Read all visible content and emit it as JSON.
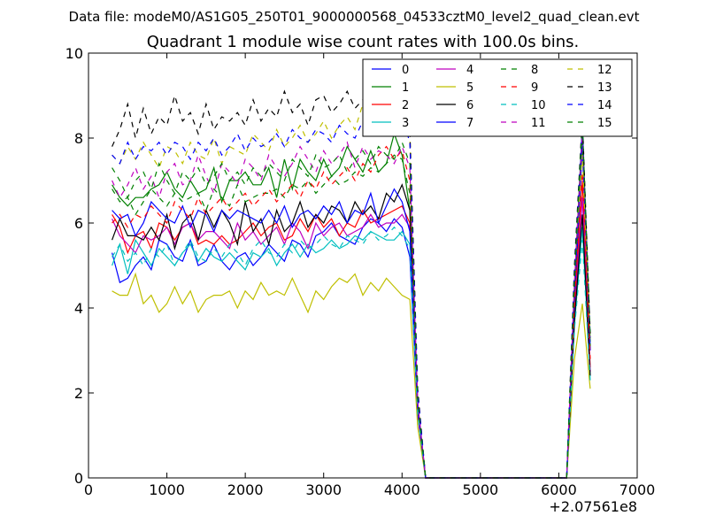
{
  "suptitle": "Data file: modeM0/AS1G05_250T01_9000000568_04533cztM0_level2_quad_clean.evt",
  "chart_data": {
    "type": "line",
    "title": "Quadrant 1 module wise count rates with 100.0s bins.",
    "xlabel": "",
    "ylabel": "",
    "xlim": [
      0,
      7000
    ],
    "ylim": [
      0,
      10
    ],
    "x_offset_label": "+2.07561e8",
    "x_ticks": [
      "0",
      "1000",
      "2000",
      "3000",
      "4000",
      "5000",
      "6000",
      "7000"
    ],
    "y_ticks": [
      "0",
      "2",
      "4",
      "6",
      "8",
      "10"
    ],
    "grid": false,
    "legend_position": "top-right",
    "series": [
      {
        "name": "0",
        "color": "#0000ff",
        "dash": "solid",
        "x0": 300,
        "dx": 100,
        "values": [
          5.3,
          4.6,
          4.7,
          5.0,
          5.2,
          4.9,
          5.6,
          5.5,
          5.2,
          5.1,
          5.6,
          5.0,
          5.1,
          5.5,
          5.1,
          4.9,
          5.2,
          5.3,
          5.0,
          5.2,
          5.5,
          5.3,
          5.1,
          5.6,
          5.5,
          5.2,
          5.7,
          5.8,
          6.0,
          5.7,
          5.6,
          5.5,
          5.9,
          6.1,
          6.0,
          5.8,
          6.1,
          5.9,
          5.2,
          1.5,
          0.0,
          0.0,
          0.0,
          0.0,
          0.0,
          0.0,
          0.0,
          0.0,
          0.0,
          0.0,
          0.0,
          0.0,
          0.0,
          0.0,
          0.0,
          0.0,
          0.0,
          0.0,
          0.0,
          4.0,
          7.8,
          3.0
        ]
      },
      {
        "name": "1",
        "color": "#008000",
        "dash": "solid",
        "x0": 300,
        "dx": 100,
        "values": [
          6.9,
          6.6,
          6.4,
          6.6,
          6.6,
          6.8,
          6.9,
          7.2,
          6.8,
          6.6,
          7.0,
          6.7,
          6.8,
          7.3,
          6.5,
          7.0,
          7.0,
          7.2,
          6.9,
          6.9,
          7.3,
          6.6,
          7.5,
          6.8,
          7.5,
          7.2,
          7.0,
          7.5,
          7.1,
          7.3,
          7.8,
          7.5,
          7.2,
          7.7,
          7.2,
          7.4,
          8.1,
          7.6,
          6.3,
          1.6,
          0.0,
          0.0,
          0.0,
          0.0,
          0.0,
          0.0,
          0.0,
          0.0,
          0.0,
          0.0,
          0.0,
          0.0,
          0.0,
          0.0,
          0.0,
          0.0,
          0.0,
          0.0,
          0.0,
          4.5,
          8.3,
          3.2
        ]
      },
      {
        "name": "2",
        "color": "#ff0000",
        "dash": "solid",
        "x0": 300,
        "dx": 100,
        "values": [
          6.2,
          5.9,
          5.3,
          5.7,
          5.8,
          5.4,
          6.0,
          5.9,
          5.6,
          5.9,
          6.0,
          5.5,
          5.6,
          5.5,
          5.7,
          5.5,
          5.6,
          5.8,
          6.0,
          5.7,
          5.9,
          6.0,
          5.6,
          5.7,
          6.1,
          5.8,
          6.2,
          5.9,
          6.1,
          5.7,
          6.0,
          5.9,
          6.3,
          6.0,
          6.1,
          6.2,
          6.3,
          6.4,
          6.0,
          1.6,
          0.0,
          0.0,
          0.0,
          0.0,
          0.0,
          0.0,
          0.0,
          0.0,
          0.0,
          0.0,
          0.0,
          0.0,
          0.0,
          0.0,
          0.0,
          0.0,
          0.0,
          0.0,
          0.0,
          3.9,
          7.0,
          2.6
        ]
      },
      {
        "name": "3",
        "color": "#00bfbf",
        "dash": "solid",
        "x0": 300,
        "dx": 100,
        "values": [
          5.0,
          5.5,
          4.8,
          5.6,
          5.3,
          5.0,
          5.4,
          5.2,
          5.0,
          5.3,
          5.5,
          5.1,
          5.4,
          5.2,
          5.1,
          5.3,
          5.1,
          4.9,
          5.3,
          5.2,
          5.4,
          5.0,
          5.3,
          5.5,
          5.2,
          5.5,
          5.3,
          5.4,
          5.6,
          5.4,
          5.5,
          5.7,
          5.6,
          5.8,
          5.7,
          5.6,
          5.6,
          5.8,
          5.5,
          1.5,
          0.0,
          0.0,
          0.0,
          0.0,
          0.0,
          0.0,
          0.0,
          0.0,
          0.0,
          0.0,
          0.0,
          0.0,
          0.0,
          0.0,
          0.0,
          0.0,
          0.0,
          0.0,
          0.0,
          3.6,
          5.9,
          2.4
        ]
      },
      {
        "name": "4",
        "color": "#bf00bf",
        "dash": "solid",
        "x0": 300,
        "dx": 100,
        "values": [
          6.1,
          5.7,
          5.5,
          5.3,
          5.7,
          5.6,
          5.7,
          5.9,
          5.5,
          5.9,
          6.0,
          5.6,
          5.8,
          5.8,
          5.6,
          5.4,
          6.0,
          5.6,
          5.8,
          5.5,
          5.7,
          5.9,
          5.5,
          6.0,
          5.8,
          5.4,
          6.0,
          5.7,
          5.9,
          6.0,
          5.7,
          5.8,
          5.9,
          6.2,
          5.9,
          6.0,
          6.0,
          6.2,
          5.9,
          1.5,
          0.0,
          0.0,
          0.0,
          0.0,
          0.0,
          0.0,
          0.0,
          0.0,
          0.0,
          0.0,
          0.0,
          0.0,
          0.0,
          0.0,
          0.0,
          0.0,
          0.0,
          0.0,
          0.0,
          3.8,
          6.6,
          2.5
        ]
      },
      {
        "name": "5",
        "color": "#bfbf00",
        "dash": "solid",
        "x0": 300,
        "dx": 100,
        "values": [
          4.4,
          4.3,
          4.3,
          4.8,
          4.1,
          4.3,
          3.9,
          4.1,
          4.5,
          4.1,
          4.4,
          3.9,
          4.2,
          4.3,
          4.3,
          4.4,
          4.0,
          4.4,
          4.2,
          4.6,
          4.3,
          4.4,
          4.3,
          4.7,
          4.3,
          3.9,
          4.4,
          4.2,
          4.5,
          4.7,
          4.6,
          4.8,
          4.3,
          4.6,
          4.4,
          4.7,
          4.5,
          4.3,
          4.2,
          1.2,
          0.0,
          0.0,
          0.0,
          0.0,
          0.0,
          0.0,
          0.0,
          0.0,
          0.0,
          0.0,
          0.0,
          0.0,
          0.0,
          0.0,
          0.0,
          0.0,
          0.0,
          0.0,
          0.0,
          2.8,
          4.1,
          2.1
        ]
      },
      {
        "name": "6",
        "color": "#000000",
        "dash": "solid",
        "x0": 300,
        "dx": 100,
        "values": [
          5.6,
          6.1,
          5.7,
          5.7,
          5.6,
          5.9,
          5.6,
          6.2,
          5.4,
          6.0,
          6.2,
          5.6,
          6.3,
          5.9,
          6.3,
          6.0,
          5.5,
          6.5,
          5.8,
          6.1,
          5.5,
          6.3,
          5.8,
          6.0,
          6.5,
          5.9,
          6.2,
          6.0,
          6.4,
          6.3,
          6.0,
          6.5,
          6.2,
          6.4,
          6.1,
          6.7,
          6.5,
          6.9,
          6.3,
          1.7,
          0.0,
          0.0,
          0.0,
          0.0,
          0.0,
          0.0,
          0.0,
          0.0,
          0.0,
          0.0,
          0.0,
          0.0,
          0.0,
          0.0,
          0.0,
          0.0,
          0.0,
          0.0,
          0.0,
          3.7,
          6.2,
          2.4
        ]
      },
      {
        "name": "7",
        "color": "#0000ff",
        "dash": "solid",
        "x0": 300,
        "dx": 100,
        "values": [
          6.3,
          6.1,
          6.2,
          5.7,
          6.0,
          6.5,
          6.3,
          6.1,
          6.0,
          6.4,
          5.9,
          6.3,
          6.2,
          5.8,
          6.3,
          6.1,
          6.3,
          6.2,
          6.1,
          6.0,
          6.3,
          6.0,
          6.4,
          5.9,
          6.2,
          6.3,
          6.1,
          6.4,
          6.2,
          6.5,
          6.0,
          6.3,
          6.2,
          6.7,
          6.0,
          6.4,
          6.8,
          6.5,
          5.8,
          1.6,
          0.0,
          0.0,
          0.0,
          0.0,
          0.0,
          0.0,
          0.0,
          0.0,
          0.0,
          0.0,
          0.0,
          0.0,
          0.0,
          0.0,
          0.0,
          0.0,
          0.0,
          0.0,
          0.0,
          4.2,
          8.3,
          3.0
        ]
      },
      {
        "name": "8",
        "color": "#008000",
        "dash": "dash",
        "x0": 300,
        "dx": 100,
        "values": [
          6.8,
          6.5,
          6.6,
          6.2,
          6.5,
          6.8,
          6.6,
          6.4,
          6.7,
          6.5,
          6.6,
          6.7,
          6.3,
          6.8,
          6.6,
          6.4,
          6.9,
          6.5,
          6.6,
          6.7,
          6.7,
          6.8,
          6.6,
          6.9,
          6.8,
          7.0,
          6.7,
          6.9,
          7.1,
          6.9,
          7.0,
          7.2,
          7.1,
          7.3,
          7.2,
          7.4,
          7.6,
          7.5,
          6.7,
          1.7,
          0.0,
          0.0,
          0.0,
          0.0,
          0.0,
          0.0,
          0.0,
          0.0,
          0.0,
          0.0,
          0.0,
          0.0,
          0.0,
          0.0,
          0.0,
          0.0,
          0.0,
          0.0,
          0.0,
          4.3,
          8.0,
          3.1
        ]
      },
      {
        "name": "9",
        "color": "#ff0000",
        "dash": "dash",
        "x0": 300,
        "dx": 100,
        "values": [
          6.0,
          6.2,
          5.9,
          6.2,
          6.1,
          6.4,
          6.2,
          6.0,
          6.5,
          6.3,
          6.1,
          6.6,
          6.2,
          6.4,
          6.6,
          6.3,
          6.5,
          6.7,
          6.4,
          6.6,
          6.8,
          6.5,
          6.7,
          6.9,
          6.6,
          7.0,
          6.8,
          7.2,
          6.9,
          7.1,
          7.3,
          7.0,
          7.4,
          7.2,
          7.6,
          7.8,
          7.5,
          7.7,
          7.0,
          1.7,
          0.0,
          0.0,
          0.0,
          0.0,
          0.0,
          0.0,
          0.0,
          0.0,
          0.0,
          0.0,
          0.0,
          0.0,
          0.0,
          0.0,
          0.0,
          0.0,
          0.0,
          0.0,
          0.0,
          4.1,
          7.2,
          2.8
        ]
      },
      {
        "name": "10",
        "color": "#00bfbf",
        "dash": "dash",
        "x0": 300,
        "dx": 100,
        "values": [
          5.2,
          5.5,
          5.1,
          5.3,
          5.0,
          5.4,
          5.2,
          5.5,
          5.0,
          5.3,
          5.6,
          5.2,
          5.1,
          5.4,
          5.2,
          5.5,
          5.3,
          5.0,
          5.4,
          5.6,
          5.3,
          5.2,
          5.5,
          5.3,
          5.6,
          5.4,
          5.5,
          5.7,
          5.5,
          5.4,
          5.7,
          5.6,
          5.5,
          5.8,
          5.6,
          5.7,
          5.9,
          5.7,
          5.4,
          1.5,
          0.0,
          0.0,
          0.0,
          0.0,
          0.0,
          0.0,
          0.0,
          0.0,
          0.0,
          0.0,
          0.0,
          0.0,
          0.0,
          0.0,
          0.0,
          0.0,
          0.0,
          0.0,
          0.0,
          3.5,
          5.6,
          2.3
        ]
      },
      {
        "name": "11",
        "color": "#bf00bf",
        "dash": "dash",
        "x0": 300,
        "dx": 100,
        "values": [
          7.0,
          6.6,
          6.9,
          7.3,
          6.8,
          7.1,
          6.6,
          7.2,
          7.4,
          6.9,
          7.0,
          7.6,
          7.1,
          6.7,
          7.4,
          7.2,
          6.9,
          7.5,
          7.3,
          7.0,
          7.6,
          7.3,
          7.1,
          7.4,
          7.8,
          7.5,
          7.2,
          7.7,
          7.4,
          7.6,
          7.9,
          7.3,
          7.8,
          7.5,
          7.7,
          7.6,
          7.4,
          7.8,
          7.3,
          1.8,
          0.0,
          0.0,
          0.0,
          0.0,
          0.0,
          0.0,
          0.0,
          0.0,
          0.0,
          0.0,
          0.0,
          0.0,
          0.0,
          0.0,
          0.0,
          0.0,
          0.0,
          0.0,
          0.0,
          4.6,
          8.1,
          3.3
        ]
      },
      {
        "name": "12",
        "color": "#bfbf00",
        "dash": "dash",
        "x0": 300,
        "dx": 100,
        "values": [
          7.6,
          7.4,
          7.8,
          7.5,
          7.9,
          7.6,
          7.3,
          7.8,
          7.7,
          7.4,
          7.9,
          7.6,
          7.5,
          8.0,
          7.4,
          7.8,
          7.7,
          7.6,
          8.1,
          7.9,
          7.7,
          8.2,
          7.8,
          8.0,
          8.3,
          7.9,
          8.1,
          8.4,
          8.0,
          8.3,
          8.5,
          8.2,
          8.8,
          8.4,
          8.6,
          8.5,
          8.4,
          8.7,
          8.0,
          2.0,
          0.0,
          0.0,
          0.0,
          0.0,
          0.0,
          0.0,
          0.0,
          0.0,
          0.0,
          0.0,
          0.0,
          0.0,
          0.0,
          0.0,
          0.0,
          0.0,
          0.0,
          0.0,
          0.0,
          4.9,
          7.6,
          3.4
        ]
      },
      {
        "name": "13",
        "color": "#000000",
        "dash": "dash",
        "x0": 300,
        "dx": 100,
        "values": [
          7.8,
          8.2,
          8.8,
          8.0,
          8.7,
          8.1,
          8.5,
          8.3,
          9.0,
          8.4,
          8.6,
          8.1,
          8.8,
          8.2,
          8.5,
          8.4,
          8.6,
          8.3,
          8.9,
          8.4,
          8.7,
          8.5,
          9.1,
          8.6,
          8.8,
          8.3,
          8.9,
          9.0,
          8.6,
          8.8,
          9.1,
          8.7,
          8.9,
          9.0,
          8.8,
          8.9,
          9.1,
          8.7,
          8.2,
          2.1,
          0.0,
          0.0,
          0.0,
          0.0,
          0.0,
          0.0,
          0.0,
          0.0,
          0.0,
          0.0,
          0.0,
          0.0,
          0.0,
          0.0,
          0.0,
          0.0,
          0.0,
          0.0,
          0.0,
          5.0,
          8.5,
          3.4
        ]
      },
      {
        "name": "14",
        "color": "#0000ff",
        "dash": "dash",
        "x0": 300,
        "dx": 100,
        "values": [
          7.6,
          7.4,
          7.9,
          7.5,
          7.8,
          7.7,
          7.9,
          7.6,
          7.9,
          7.8,
          7.5,
          7.9,
          7.7,
          8.0,
          7.6,
          7.8,
          8.1,
          7.7,
          8.0,
          7.8,
          7.9,
          8.1,
          7.8,
          8.2,
          8.0,
          7.9,
          8.2,
          8.1,
          7.9,
          8.3,
          8.1,
          8.0,
          8.4,
          8.2,
          8.5,
          8.3,
          8.1,
          8.5,
          7.9,
          2.0,
          0.0,
          0.0,
          0.0,
          0.0,
          0.0,
          0.0,
          0.0,
          0.0,
          0.0,
          0.0,
          0.0,
          0.0,
          0.0,
          0.0,
          0.0,
          0.0,
          0.0,
          0.0,
          0.0,
          4.8,
          8.3,
          3.3
        ]
      },
      {
        "name": "15",
        "color": "#008000",
        "dash": "dash",
        "x0": 300,
        "dx": 100,
        "values": [
          7.3,
          7.0,
          6.6,
          7.0,
          7.2,
          6.8,
          7.4,
          7.0,
          6.7,
          7.2,
          7.0,
          7.3,
          6.9,
          7.1,
          7.4,
          7.0,
          7.2,
          6.9,
          7.3,
          7.1,
          7.4,
          7.2,
          7.0,
          7.5,
          7.3,
          7.1,
          7.6,
          7.3,
          7.4,
          7.6,
          7.2,
          7.5,
          7.7,
          7.4,
          7.8,
          7.6,
          7.5,
          7.9,
          7.4,
          1.8,
          0.0,
          0.0,
          0.0,
          0.0,
          0.0,
          0.0,
          0.0,
          0.0,
          0.0,
          0.0,
          0.0,
          0.0,
          0.0,
          0.0,
          0.0,
          0.0,
          0.0,
          0.0,
          0.0,
          4.7,
          8.4,
          3.3
        ]
      }
    ]
  }
}
